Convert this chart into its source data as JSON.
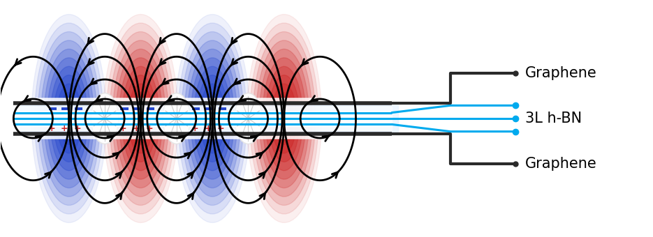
{
  "fig_width": 9.35,
  "fig_height": 3.4,
  "dpi": 100,
  "bg_color": "#ffffff",
  "blue": "#2244cc",
  "red": "#cc2222",
  "cyan": "#00aaee",
  "dark": "#2a2a2a",
  "label_graphene_top": "Graphene",
  "label_hbn": "3L h-BN",
  "label_graphene_bot": "Graphene"
}
